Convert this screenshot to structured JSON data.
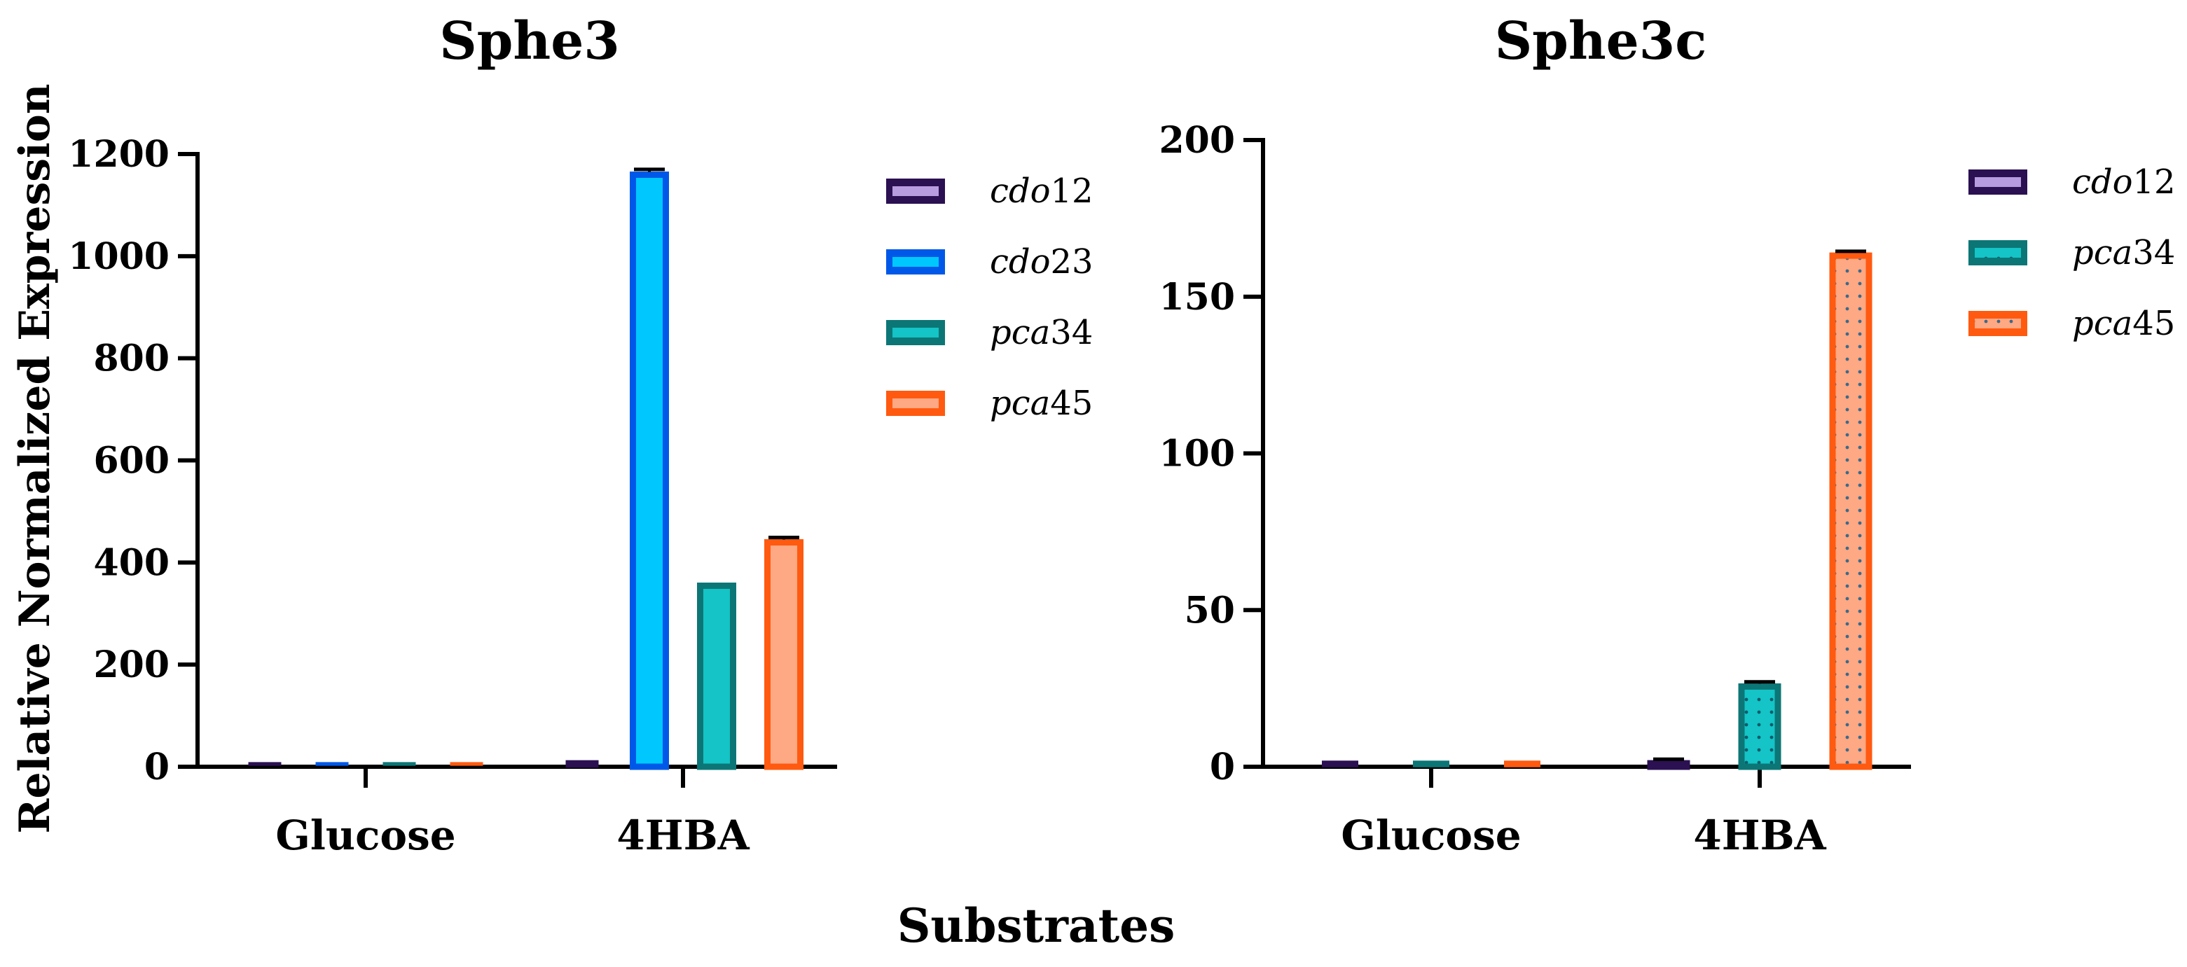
{
  "shared": {
    "ylabel": "Relative Normalized Expression",
    "xlabel": "Substrates"
  },
  "chart_data": [
    {
      "type": "bar",
      "title": "Sphe3",
      "categories": [
        "Glucose",
        "4HBA"
      ],
      "ylim": [
        0,
        1200
      ],
      "yticks": [
        0,
        200,
        400,
        600,
        800,
        1000,
        1200
      ],
      "legend_position": "top-right",
      "series": [
        {
          "name": "cdo12",
          "values": [
            0.5,
            8
          ],
          "errors": [
            0,
            0
          ],
          "fill": "#b79de0",
          "stroke": "#2b1052",
          "pattern": "none"
        },
        {
          "name": "cdo23",
          "values": [
            0.5,
            1165
          ],
          "errors": [
            0,
            5
          ],
          "fill": "#00c8ff",
          "stroke": "#0058e8",
          "pattern": "none"
        },
        {
          "name": "pca34",
          "values": [
            0.5,
            360
          ],
          "errors": [
            0,
            0
          ],
          "fill": "#14c4c6",
          "stroke": "#0c7676",
          "pattern": "none"
        },
        {
          "name": "pca45",
          "values": [
            0.5,
            445
          ],
          "errors": [
            0,
            4
          ],
          "fill": "#ffa884",
          "stroke": "#ff5a10",
          "pattern": "none"
        }
      ]
    },
    {
      "type": "bar",
      "title": "Sphe3c",
      "categories": [
        "Glucose",
        "4HBA"
      ],
      "ylim": [
        0,
        200
      ],
      "yticks": [
        0,
        50,
        100,
        150,
        200
      ],
      "legend_position": "top-right",
      "series": [
        {
          "name": "cdo12",
          "values": [
            1,
            2
          ],
          "errors": [
            0.4,
            0.4
          ],
          "fill": "#b79de0",
          "stroke": "#2b1052",
          "pattern": "none"
        },
        {
          "name": "pca34",
          "values": [
            1,
            26.5
          ],
          "errors": [
            0.4,
            0.6
          ],
          "fill": "#14c4c6",
          "stroke": "#0c7676",
          "pattern": "dots"
        },
        {
          "name": "pca45",
          "values": [
            1,
            164
          ],
          "errors": [
            0.4,
            0.5
          ],
          "fill": "#ffa884",
          "stroke": "#ff5a10",
          "pattern": "dots"
        }
      ]
    }
  ]
}
